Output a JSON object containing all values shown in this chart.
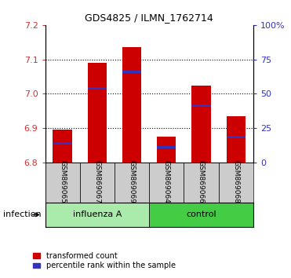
{
  "title": "GDS4825 / ILMN_1762714",
  "samples": [
    "GSM869065",
    "GSM869067",
    "GSM869069",
    "GSM869064",
    "GSM869066",
    "GSM869068"
  ],
  "group_labels": [
    "influenza A",
    "control"
  ],
  "bar_base": 6.8,
  "red_tops": [
    6.895,
    7.09,
    7.135,
    6.875,
    7.025,
    6.935
  ],
  "blue_marks": [
    6.856,
    7.015,
    7.063,
    6.845,
    6.965,
    6.875
  ],
  "bar_color": "#cc0000",
  "blue_color": "#3333bb",
  "ylim_left": [
    6.8,
    7.2
  ],
  "yticks_left": [
    6.8,
    6.9,
    7.0,
    7.1,
    7.2
  ],
  "ylim_right": [
    0,
    100
  ],
  "yticks_right": [
    0,
    25,
    50,
    75,
    100
  ],
  "yticklabels_right": [
    "0",
    "25",
    "50",
    "75",
    "100%"
  ],
  "left_tick_color": "#cc3333",
  "right_tick_color": "#3333bb",
  "label_infection": "infection",
  "legend_red": "transformed count",
  "legend_blue": "percentile rank within the sample",
  "bar_width": 0.55,
  "xlabel_area_bg": "#cccccc",
  "influenza_bg": "#aaeaaa",
  "control_bg": "#44cc44",
  "n_influenza": 3,
  "n_control": 3,
  "title_fontsize": 9,
  "tick_fontsize": 8,
  "sample_fontsize": 6.5,
  "group_fontsize": 8,
  "legend_fontsize": 7
}
